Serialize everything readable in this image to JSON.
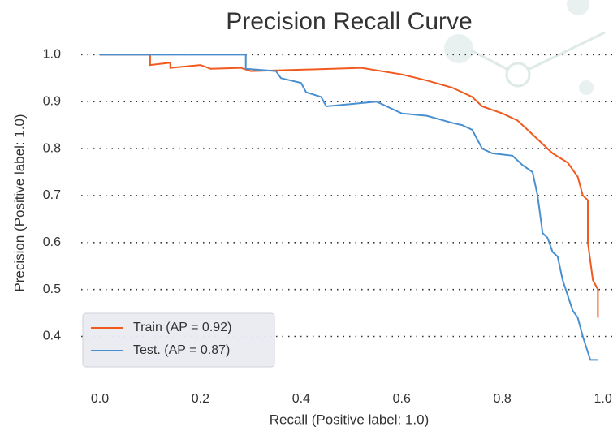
{
  "chart_data": {
    "type": "line",
    "title": "Precision Recall Curve",
    "xlabel": "Recall (Positive label: 1.0)",
    "ylabel": "Precision (Positive label: 1.0)",
    "xlim": [
      -0.05,
      1.02
    ],
    "ylim": [
      0.33,
      1.03
    ],
    "xticks": [
      {
        "value": 0,
        "label": "0.0"
      },
      0.2,
      0.4,
      0.6,
      0.8,
      {
        "value": 1,
        "label": "1.0"
      }
    ],
    "yticks": [
      {
        "value": 1,
        "label": "1.0"
      },
      0.9,
      0.8,
      0.7,
      0.6,
      0.5,
      0.4
    ],
    "grid": true,
    "legend": "lower left",
    "series": [
      {
        "name": "Train (AP = 0.92)",
        "color": "#f05a1e",
        "x": [
          0,
          0.1,
          0.1,
          0.14,
          0.14,
          0.2,
          0.22,
          0.28,
          0.3,
          0.4,
          0.52,
          0.6,
          0.65,
          0.7,
          0.74,
          0.76,
          0.8,
          0.83,
          0.85,
          0.87,
          0.9,
          0.93,
          0.95,
          0.96,
          0.97,
          0.97,
          0.98,
          0.99,
          0.99
        ],
        "values": [
          1,
          1,
          0.978,
          0.983,
          0.972,
          0.978,
          0.97,
          0.972,
          0.965,
          0.968,
          0.972,
          0.958,
          0.945,
          0.93,
          0.91,
          0.89,
          0.875,
          0.86,
          0.84,
          0.82,
          0.79,
          0.77,
          0.74,
          0.7,
          0.69,
          0.6,
          0.52,
          0.5,
          0.44
        ]
      },
      {
        "name": "Test. (AP = 0.87)",
        "color": "#4a90d0",
        "x": [
          0,
          0.29,
          0.29,
          0.35,
          0.36,
          0.4,
          0.41,
          0.44,
          0.45,
          0.5,
          0.55,
          0.6,
          0.65,
          0.7,
          0.72,
          0.74,
          0.76,
          0.78,
          0.82,
          0.84,
          0.86,
          0.87,
          0.88,
          0.89,
          0.9,
          0.91,
          0.92,
          0.94,
          0.95,
          0.96,
          0.975,
          0.99
        ],
        "values": [
          1,
          1,
          0.97,
          0.965,
          0.95,
          0.94,
          0.92,
          0.91,
          0.89,
          0.895,
          0.9,
          0.875,
          0.87,
          0.855,
          0.85,
          0.84,
          0.8,
          0.79,
          0.785,
          0.765,
          0.75,
          0.7,
          0.62,
          0.61,
          0.58,
          0.57,
          0.52,
          0.455,
          0.44,
          0.4,
          0.35,
          0.35
        ]
      }
    ]
  }
}
